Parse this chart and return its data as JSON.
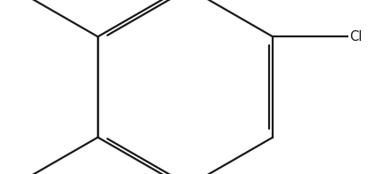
{
  "bg_color": "#ffffff",
  "line_color": "#1a1a1a",
  "line_width": 1.6,
  "font_size": 10.5,
  "figsize": [
    4.13,
    1.96
  ],
  "dpi": 100
}
